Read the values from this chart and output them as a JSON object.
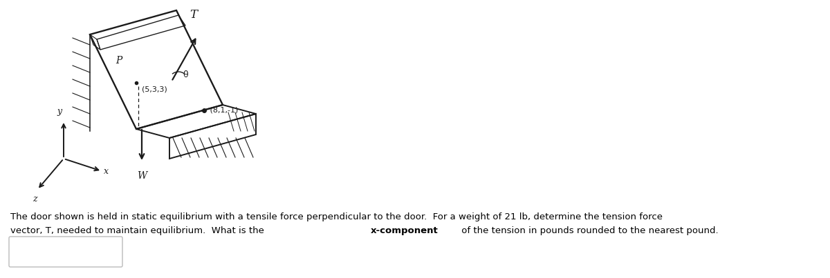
{
  "bg_color": "#ffffff",
  "fig_width": 12.0,
  "fig_height": 4.03,
  "dpi": 100,
  "line1": "The door shown is held in static equilibrium with a tensile force perpendicular to the door.  For a weight of 21 lb, determine the tension force",
  "line2_pre": "vector, T, needed to maintain equilibrium.  What is the ",
  "line2_bold": "x-component",
  "line2_post": " of the tension in pounds rounded to the nearest pound.",
  "text_fontsize": 9.5,
  "text_color": "#000000",
  "answer_box_color": "#cccccc",
  "sketch_color": "#1a1a1a",
  "diagram_lw": 1.4,
  "hatch_lw": 0.9
}
